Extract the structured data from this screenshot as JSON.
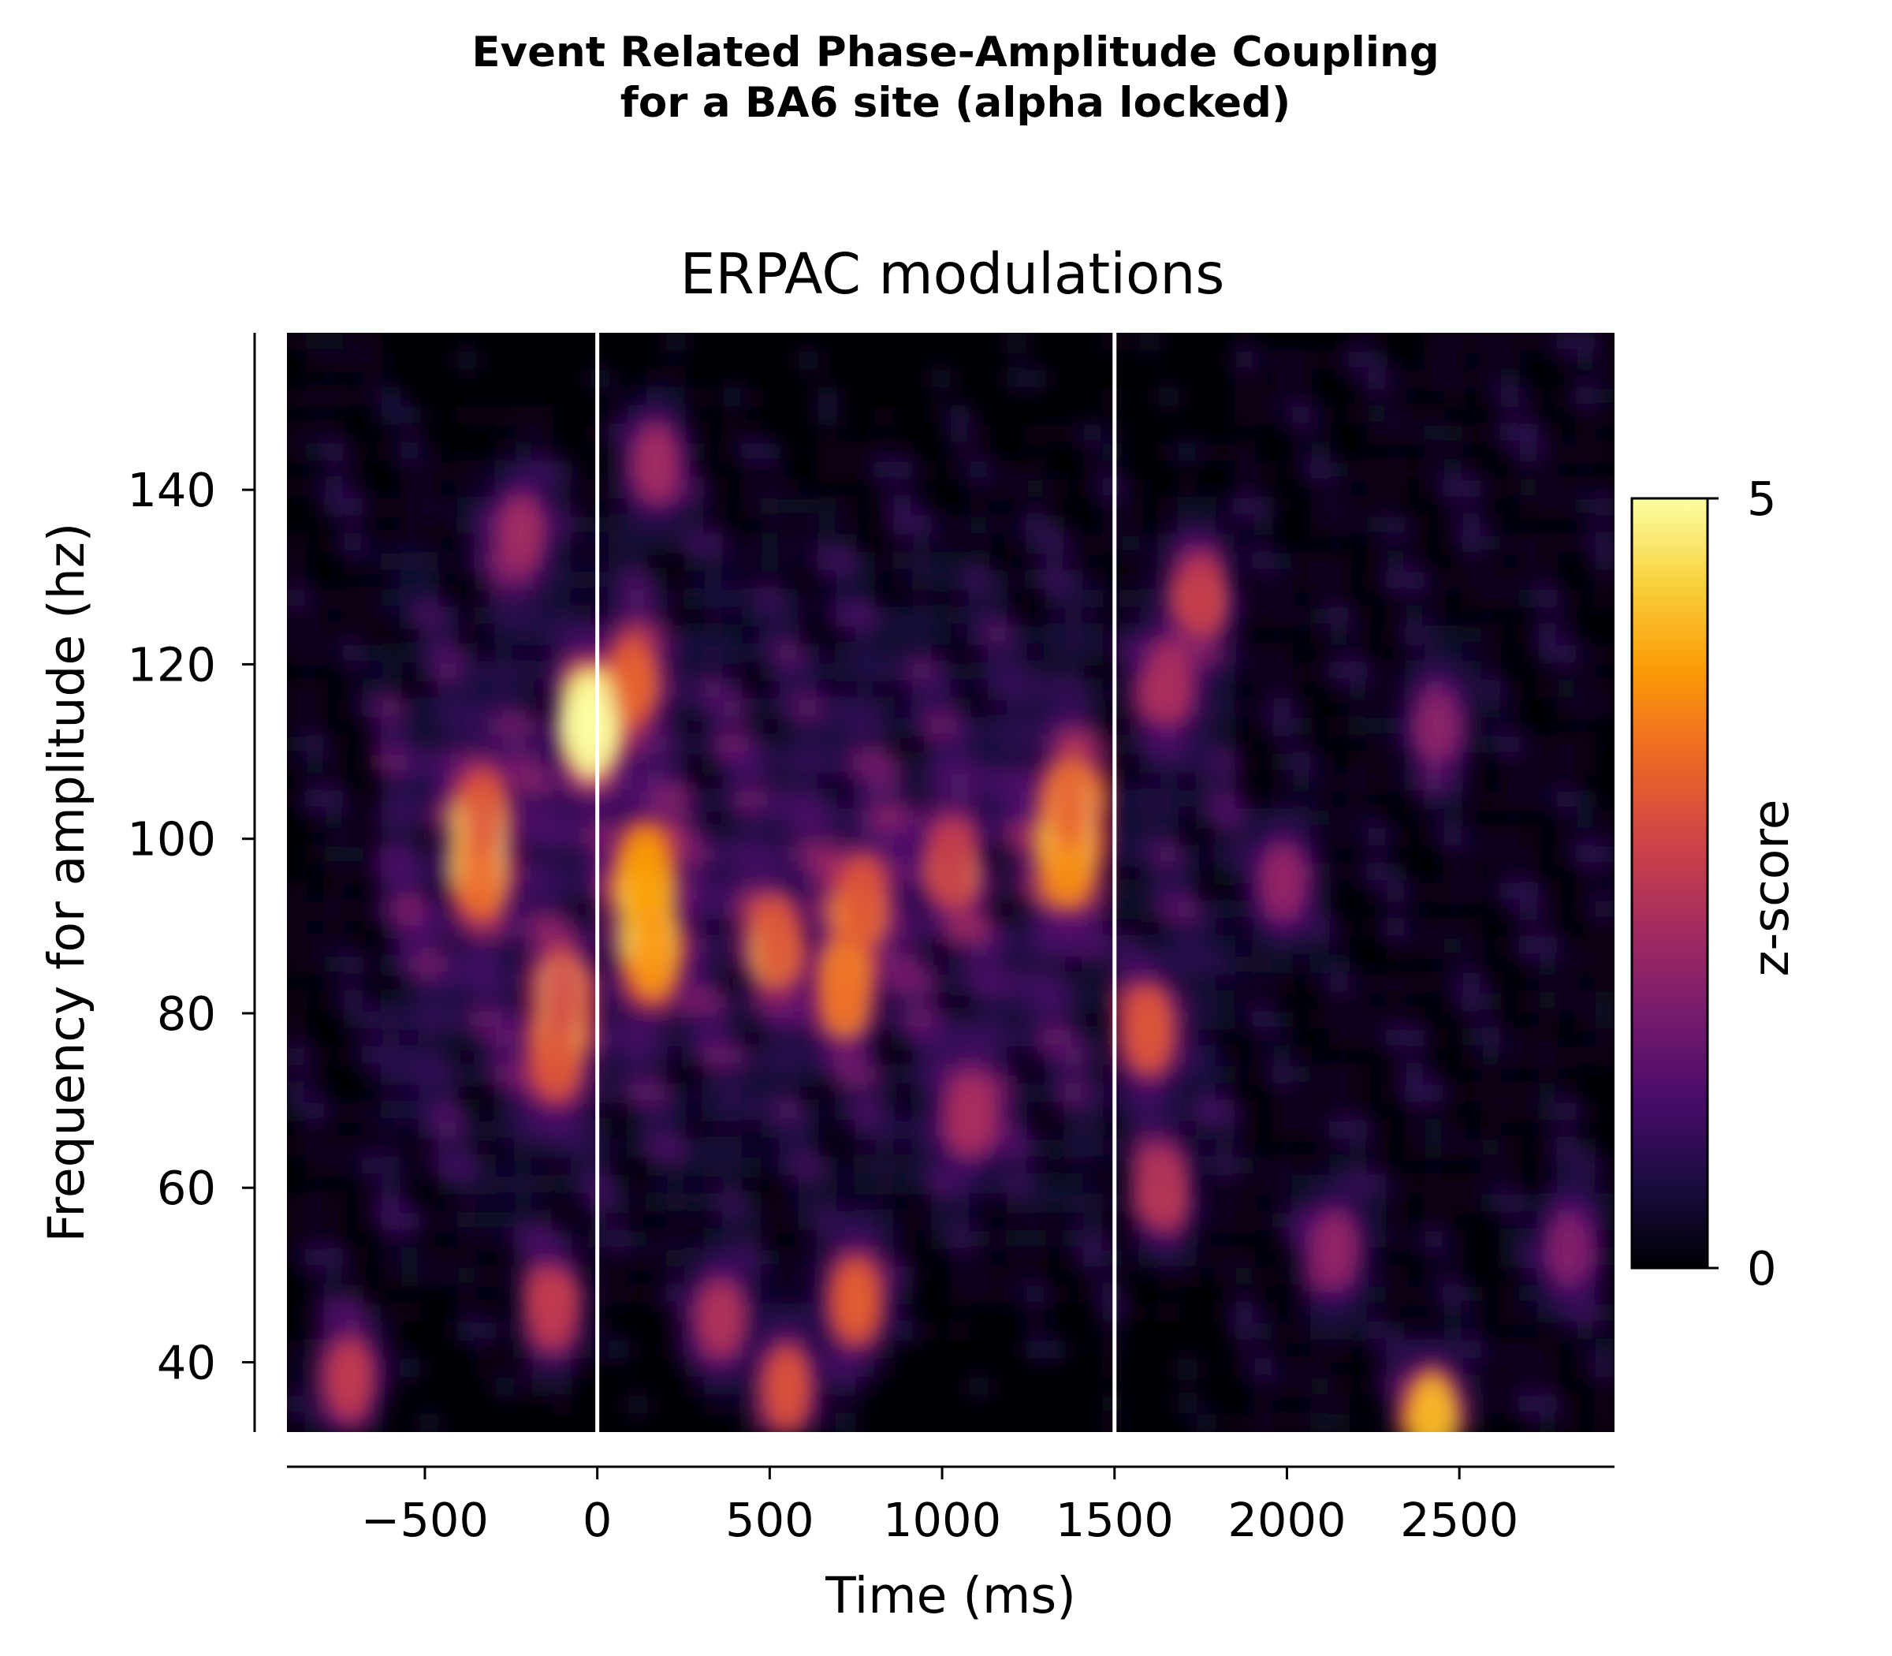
{
  "figure": {
    "suptitle_line1": "Event Related Phase-Amplitude Coupling",
    "suptitle_line2": "for a BA6 site (alpha locked)"
  },
  "chart_data": {
    "type": "heatmap",
    "title": "ERPAC modulations",
    "xlabel": "Time (ms)",
    "ylabel": "Frequency for amplitude (hz)",
    "colorbar_label": "z-score",
    "colormap": "inferno",
    "colormap_stops": [
      "#000004",
      "#1b0c41",
      "#4a0c6b",
      "#781c6d",
      "#a52c60",
      "#cf4446",
      "#ed6925",
      "#fb9b06",
      "#f7d13d",
      "#fcffa4"
    ],
    "xlim": [
      -900,
      2950
    ],
    "ylim": [
      32,
      158
    ],
    "clim": [
      0,
      5
    ],
    "x_ticks": [
      -500,
      0,
      500,
      1000,
      1500,
      2000,
      2500
    ],
    "x_tick_labels": [
      "−500",
      "0",
      "500",
      "1000",
      "1500",
      "2000",
      "2500"
    ],
    "y_ticks": [
      40,
      60,
      80,
      100,
      120,
      140
    ],
    "y_tick_labels": [
      "40",
      "60",
      "80",
      "100",
      "120",
      "140"
    ],
    "colorbar_ticks": [
      0,
      5
    ],
    "colorbar_tick_labels": [
      "0",
      "5"
    ],
    "vertical_lines_x": [
      0,
      1500
    ],
    "vertical_line_color": "#ffffff",
    "grid": false,
    "hotspots": [
      {
        "x": -20,
        "y": 113,
        "z": 5.0
      },
      {
        "x": 140,
        "y": 96,
        "z": 3.9
      },
      {
        "x": 160,
        "y": 87,
        "z": 3.8
      },
      {
        "x": 100,
        "y": 118,
        "z": 3.2
      },
      {
        "x": -340,
        "y": 96,
        "z": 3.3
      },
      {
        "x": -330,
        "y": 103,
        "z": 3.0
      },
      {
        "x": 1370,
        "y": 98,
        "z": 3.7
      },
      {
        "x": 1370,
        "y": 104,
        "z": 3.2
      },
      {
        "x": 720,
        "y": 83,
        "z": 3.4
      },
      {
        "x": 770,
        "y": 93,
        "z": 3.0
      },
      {
        "x": 520,
        "y": 88,
        "z": 3.0
      },
      {
        "x": -120,
        "y": 75,
        "z": 3.0
      },
      {
        "x": -100,
        "y": 82,
        "z": 2.8
      },
      {
        "x": 1600,
        "y": 78,
        "z": 3.0
      },
      {
        "x": 750,
        "y": 47,
        "z": 3.2
      },
      {
        "x": 2420,
        "y": 33,
        "z": 4.2
      },
      {
        "x": 550,
        "y": 37,
        "z": 3.0
      },
      {
        "x": 1750,
        "y": 128,
        "z": 2.6
      },
      {
        "x": 1660,
        "y": 118,
        "z": 2.3
      },
      {
        "x": 1990,
        "y": 95,
        "z": 2.0
      },
      {
        "x": 1080,
        "y": 68,
        "z": 2.3
      },
      {
        "x": 1030,
        "y": 97,
        "z": 2.6
      },
      {
        "x": -720,
        "y": 38,
        "z": 2.6
      },
      {
        "x": -130,
        "y": 46,
        "z": 2.6
      },
      {
        "x": 360,
        "y": 45,
        "z": 2.4
      },
      {
        "x": 170,
        "y": 143,
        "z": 2.2
      },
      {
        "x": -220,
        "y": 135,
        "z": 2.2
      },
      {
        "x": 1640,
        "y": 60,
        "z": 2.4
      },
      {
        "x": 2140,
        "y": 53,
        "z": 2.0
      },
      {
        "x": 2440,
        "y": 113,
        "z": 1.9
      },
      {
        "x": 2820,
        "y": 53,
        "z": 1.8
      }
    ]
  }
}
